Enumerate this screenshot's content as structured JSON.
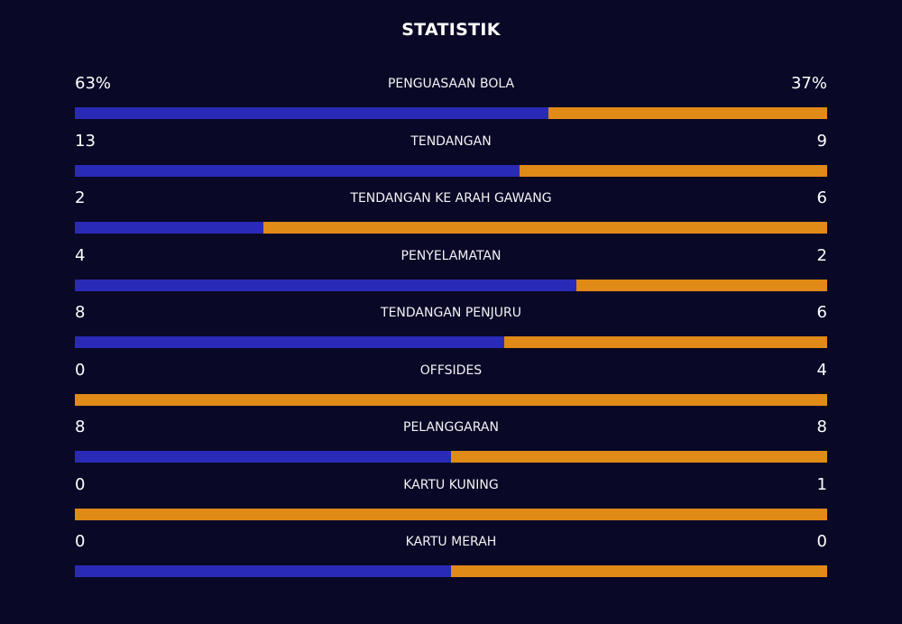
{
  "title": "STATISTIK",
  "colors": {
    "background": "#090826",
    "home": "#2a2ab8",
    "away": "#e08a17"
  },
  "stats": [
    {
      "label": "PENGUASAAN BOLA",
      "left": "63%",
      "right": "37%",
      "home_share": 0.63
    },
    {
      "label": "TENDANGAN",
      "left": "13",
      "right": "9",
      "home_share": 0.591
    },
    {
      "label": "TENDANGAN KE ARAH GAWANG",
      "left": "2",
      "right": "6",
      "home_share": 0.25
    },
    {
      "label": "PENYELAMATAN",
      "left": "4",
      "right": "2",
      "home_share": 0.667
    },
    {
      "label": "TENDANGAN PENJURU",
      "left": "8",
      "right": "6",
      "home_share": 0.571
    },
    {
      "label": "OFFSIDES",
      "left": "0",
      "right": "4",
      "home_share": 0
    },
    {
      "label": "PELANGGARAN",
      "left": "8",
      "right": "8",
      "home_share": 0.5
    },
    {
      "label": "KARTU KUNING",
      "left": "0",
      "right": "1",
      "home_share": 0
    },
    {
      "label": "KARTU MERAH",
      "left": "0",
      "right": "0",
      "home_share": 0.5
    }
  ]
}
